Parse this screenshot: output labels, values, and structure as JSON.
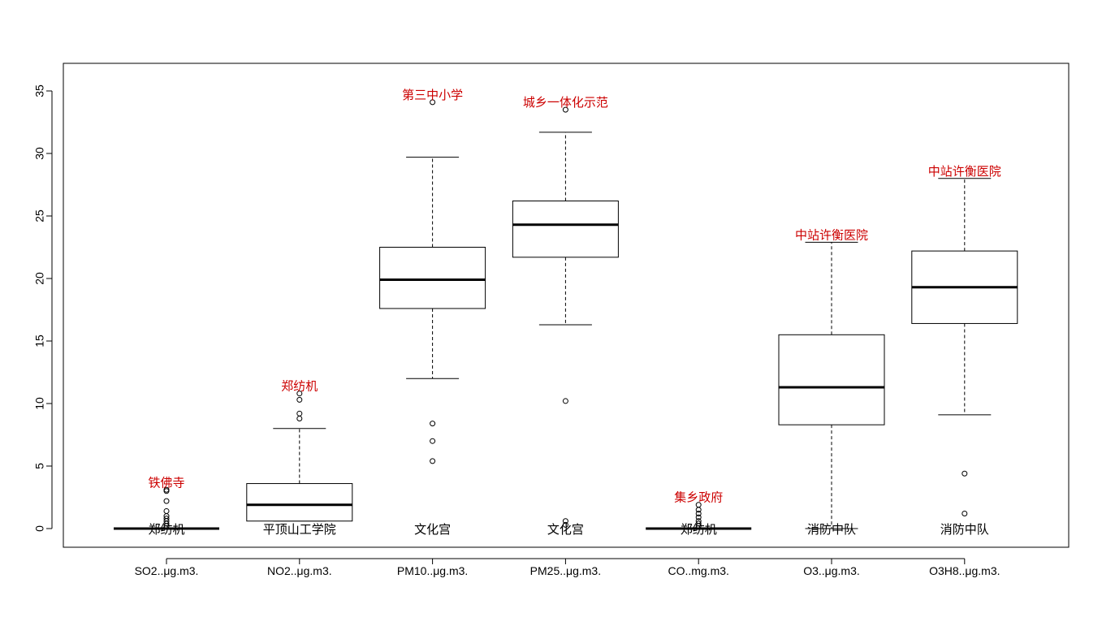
{
  "chart_data": {
    "type": "box",
    "title": "",
    "xlabel": "",
    "ylabel": "",
    "ylim": [
      -1.5,
      37
    ],
    "yticks": [
      0,
      5,
      10,
      15,
      20,
      25,
      30,
      35
    ],
    "grid": false,
    "legend": "none",
    "colors": {
      "max_label": "#cc0000",
      "min_label": "#000000",
      "box_stroke": "#000000"
    },
    "categories": [
      "SO2..μg.m3.",
      "NO2..μg.m3.",
      "PM10..μg.m3.",
      "PM25..μg.m3.",
      "CO..mg.m3.",
      "O3..μg.m3.",
      "O3H8..μg.m3."
    ],
    "boxes": [
      {
        "whisker_low": 0,
        "q1": 0,
        "median": 0,
        "q3": 0,
        "whisker_high": 0,
        "outliers": [
          0.2,
          0.4,
          0.6,
          0.8,
          1.0,
          1.4,
          2.2,
          3.0,
          3.1
        ],
        "max_label": "铁佛寺",
        "min_label": "郑纺机"
      },
      {
        "whisker_low": 0.6,
        "q1": 0.6,
        "median": 1.9,
        "q3": 3.6,
        "whisker_high": 8.0,
        "outliers": [
          8.8,
          9.2,
          10.3,
          10.8
        ],
        "max_label": "郑纺机",
        "min_label": "平顶山工学院"
      },
      {
        "whisker_low": 12.0,
        "q1": 17.6,
        "median": 19.9,
        "q3": 22.5,
        "whisker_high": 29.7,
        "outliers": [
          5.4,
          7.0,
          8.4,
          34.1
        ],
        "max_label": "第三中小学",
        "min_label": "文化宫"
      },
      {
        "whisker_low": 16.3,
        "q1": 21.7,
        "median": 24.3,
        "q3": 26.2,
        "whisker_high": 31.7,
        "outliers": [
          0.3,
          0.6,
          10.2,
          33.5
        ],
        "max_label": "城乡一体化示范",
        "min_label": "文化宫"
      },
      {
        "whisker_low": 0,
        "q1": 0,
        "median": 0,
        "q3": 0,
        "whisker_high": 0,
        "outliers": [
          0.2,
          0.4,
          0.6,
          0.9,
          1.2,
          1.5,
          1.9
        ],
        "max_label": "集乡政府",
        "min_label": "郑纺机"
      },
      {
        "whisker_low": 0,
        "q1": 8.3,
        "median": 11.3,
        "q3": 15.5,
        "whisker_high": 22.9,
        "outliers": [],
        "max_label": "中站许衡医院",
        "min_label": "消防中队"
      },
      {
        "whisker_low": 9.1,
        "q1": 16.4,
        "median": 19.3,
        "q3": 22.2,
        "whisker_high": 28.0,
        "outliers": [
          1.2,
          4.4
        ],
        "max_label": "中站许衡医院",
        "min_label": "消防中队"
      }
    ]
  }
}
